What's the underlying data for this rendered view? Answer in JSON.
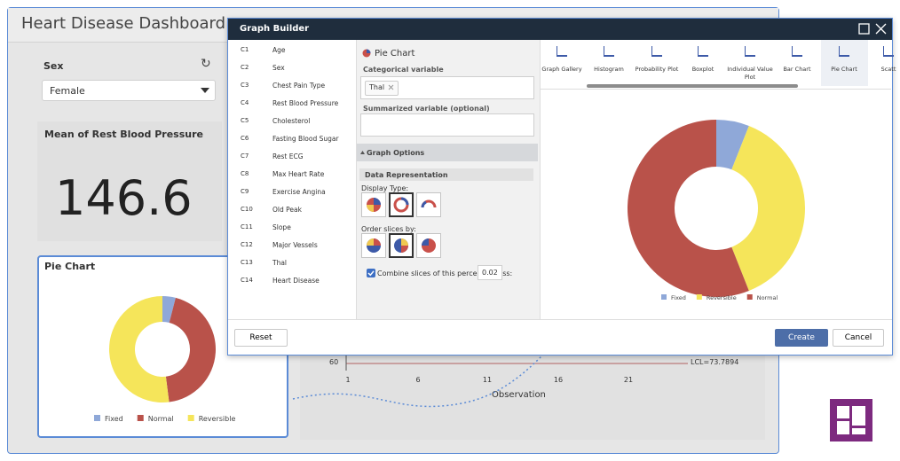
{
  "dashboard": {
    "title": "Heart Disease Dashboard",
    "filter": {
      "label": "Sex",
      "value": "Female"
    },
    "kpi": {
      "label": "Mean of Rest Blood Pressure",
      "value": 146.6
    },
    "pie_card": {
      "title": "Pie Chart",
      "slices": [
        {
          "name": "Fixed",
          "color": "#8fa8d8",
          "value": 4
        },
        {
          "name": "Normal",
          "color": "#b9524a",
          "value": 44
        },
        {
          "name": "Reversible",
          "color": "#f5e55a",
          "value": 52
        }
      ]
    },
    "control_chart": {
      "ytick": "60",
      "xticks": [
        "1",
        "6",
        "11",
        "16",
        "21"
      ],
      "x_label": "Observation",
      "lcl_label": "LCL=73.7894"
    }
  },
  "dialog": {
    "title": "Graph Builder",
    "columns": [
      {
        "id": "C1",
        "name": "Age"
      },
      {
        "id": "C2",
        "name": "Sex"
      },
      {
        "id": "C3",
        "name": "Chest Pain Type"
      },
      {
        "id": "C4",
        "name": "Rest Blood Pressure"
      },
      {
        "id": "C5",
        "name": "Cholesterol"
      },
      {
        "id": "C6",
        "name": "Fasting Blood Sugar"
      },
      {
        "id": "C7",
        "name": "Rest ECG"
      },
      {
        "id": "C8",
        "name": "Max Heart Rate"
      },
      {
        "id": "C9",
        "name": "Exercise Angina"
      },
      {
        "id": "C10",
        "name": "Old Peak"
      },
      {
        "id": "C11",
        "name": "Slope"
      },
      {
        "id": "C12",
        "name": "Major Vessels"
      },
      {
        "id": "C13",
        "name": "Thal"
      },
      {
        "id": "C14",
        "name": "Heart Disease"
      }
    ],
    "options": {
      "chart_title": "Pie Chart",
      "categorical_label": "Categorical variable",
      "categorical_value": "Thal",
      "summarized_label": "Summarized variable (optional)",
      "section": "Graph Options",
      "subsection": "Data Representation",
      "display_type": "Display Type:",
      "order_by": "Order slices by:",
      "combine_label": "Combine slices of this percent or less:",
      "combine_value": 0.02
    },
    "gallery": [
      "Graph Gallery",
      "Histogram",
      "Probability Plot",
      "Boxplot",
      "Individual Value Plot",
      "Bar Chart",
      "Pie Chart",
      "Scatt"
    ],
    "preview": {
      "slices": [
        {
          "name": "Fixed",
          "color": "#8fa8d8",
          "value": 6
        },
        {
          "name": "Reversible",
          "color": "#f5e55a",
          "value": 38
        },
        {
          "name": "Normal",
          "color": "#b9524a",
          "value": 56
        }
      ]
    },
    "buttons": {
      "reset": "Reset",
      "create": "Create",
      "cancel": "Cancel"
    }
  }
}
